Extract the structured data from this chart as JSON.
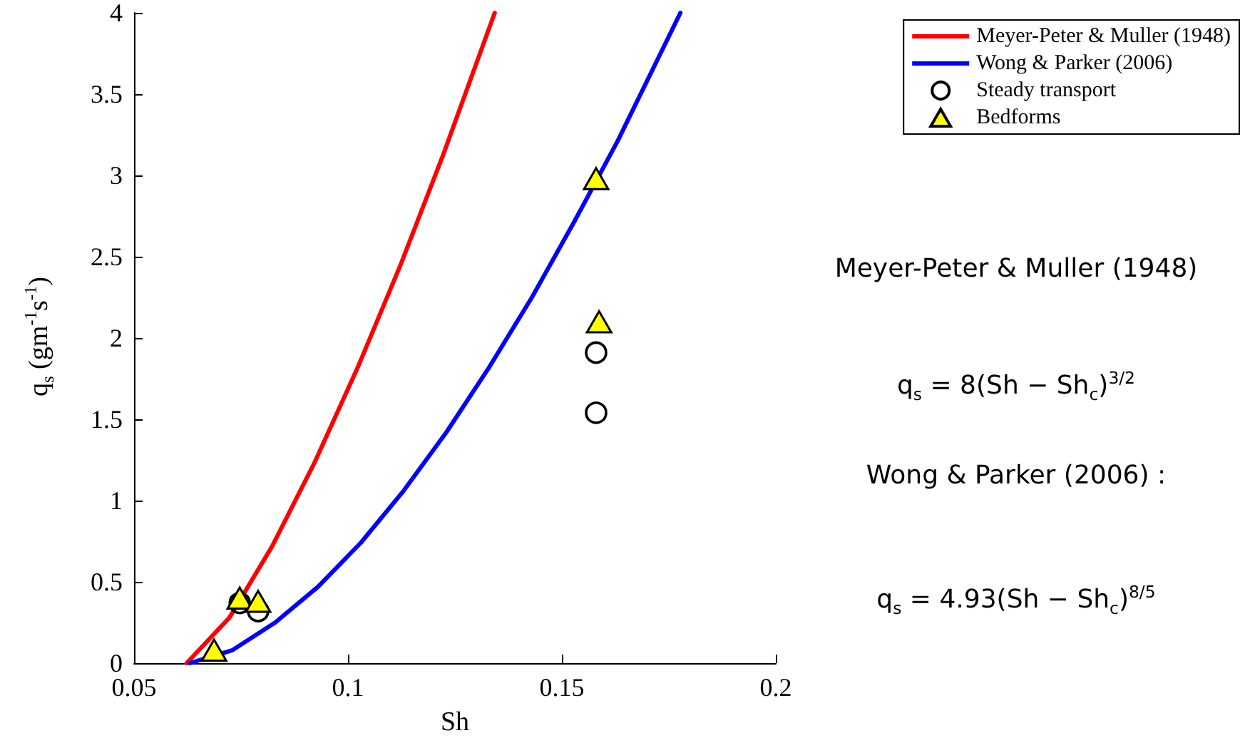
{
  "chart_data": {
    "type": "line",
    "xlabel": "Sh",
    "ylabel": "q$_{s}$ (gm$^{-1}$s$^{-1}$)",
    "xlim": [
      0.05,
      0.2
    ],
    "xticks": [
      0.05,
      0.1,
      0.15,
      0.2
    ],
    "ylim": [
      0,
      4
    ],
    "yticks": [
      0,
      0.5,
      1,
      1.5,
      2,
      2.5,
      3,
      3.5,
      4
    ],
    "grid": false,
    "legend": "top right",
    "series": [
      {
        "name": "Meyer-Peter & Muller (1948)",
        "color": "#ff0000",
        "marker": "none",
        "x": [
          0.0623,
          0.0723,
          0.0823,
          0.0923,
          0.1023,
          0.1123,
          0.1223,
          0.1343
        ],
        "values": [
          0,
          0.28,
          0.72,
          1.24,
          1.82,
          2.45,
          3.13,
          4
        ]
      },
      {
        "name": "Wong & Parker (2006)",
        "color": "#0000ff",
        "marker": "none",
        "x": [
          0.063,
          0.073,
          0.083,
          0.093,
          0.103,
          0.113,
          0.123,
          0.133,
          0.143,
          0.153,
          0.163,
          0.1777
        ],
        "values": [
          0,
          0.08,
          0.25,
          0.47,
          0.74,
          1.06,
          1.42,
          1.82,
          2.25,
          2.72,
          3.21,
          4
        ]
      },
      {
        "name": "Steady transport",
        "type": "scatter",
        "color": "#000000",
        "marker": "circle",
        "x": [
          0.0747,
          0.079,
          0.158,
          0.158
        ],
        "values": [
          0.37,
          0.32,
          1.91,
          1.54
        ]
      },
      {
        "name": "Bedforms",
        "type": "scatter",
        "color": "#ffff00",
        "marker": "triangle",
        "x": [
          0.0687,
          0.0747,
          0.079,
          0.158,
          0.1587
        ],
        "values": [
          0.08,
          0.4,
          0.38,
          2.98,
          2.1
        ]
      }
    ],
    "annotations": [
      "Meyer-Peter & Muller (1948)",
      "q$_{s}$ = 8(Sh − Sh$_{c}$)$^{3/2}$",
      "Wong & Parker (2006) :",
      "q$_{s}$ = 4.93(Sh − Sh$_{c}$)$^{8/5}$"
    ]
  }
}
